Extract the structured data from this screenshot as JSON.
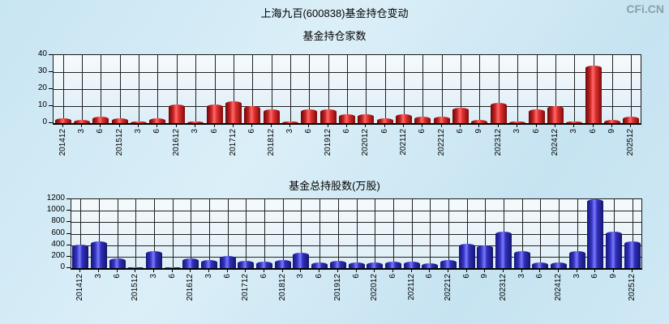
{
  "page": {
    "watermark": "CFi.CN",
    "title": "上海九百(600838)基金持仓变动"
  },
  "chart_data": [
    {
      "type": "bar",
      "title": "基金持仓家数",
      "categories": [
        "201412",
        "3",
        "6",
        "201512",
        "3",
        "6",
        "201612",
        "3",
        "6",
        "201712",
        "6",
        "201812",
        "3",
        "6",
        "201912",
        "6",
        "202012",
        "6",
        "202112",
        "6",
        "202212",
        "6",
        "9",
        "202312",
        "3",
        "6",
        "202412",
        "3",
        "6",
        "9",
        "202512"
      ],
      "values": [
        3,
        2,
        4,
        3,
        1,
        3,
        11,
        1,
        11,
        13,
        10,
        8,
        1,
        8,
        8,
        5,
        5,
        3,
        5,
        4,
        4,
        9,
        2,
        12,
        1,
        8,
        10,
        1,
        34,
        2,
        4
      ],
      "xlabel": "",
      "ylabel": "",
      "ylim": [
        0,
        40
      ],
      "yticks": [
        0,
        10,
        20,
        30,
        40
      ],
      "grid": true,
      "legend_position": "none",
      "bar_color": "#e03030"
    },
    {
      "type": "bar",
      "title": "基金总持股数(万股)",
      "categories": [
        "201412",
        "3",
        "6",
        "201512",
        "3",
        "6",
        "201612",
        "3",
        "6",
        "201712",
        "6",
        "201812",
        "3",
        "6",
        "201912",
        "6",
        "202012",
        "6",
        "202112",
        "6",
        "202212",
        "6",
        "9",
        "202312",
        "3",
        "6",
        "202412",
        "3",
        "6",
        "9",
        "202512"
      ],
      "values": [
        410,
        470,
        165,
        20,
        300,
        20,
        170,
        140,
        210,
        130,
        115,
        135,
        270,
        100,
        130,
        100,
        105,
        110,
        115,
        90,
        140,
        430,
        400,
        640,
        300,
        100,
        100,
        290,
        1200,
        630,
        470
      ],
      "xlabel": "",
      "ylabel": "",
      "ylim": [
        0,
        1200
      ],
      "yticks": [
        0,
        200,
        400,
        600,
        800,
        1000,
        1200
      ],
      "grid": true,
      "legend_position": "none",
      "bar_color": "#3a3ac8"
    }
  ]
}
